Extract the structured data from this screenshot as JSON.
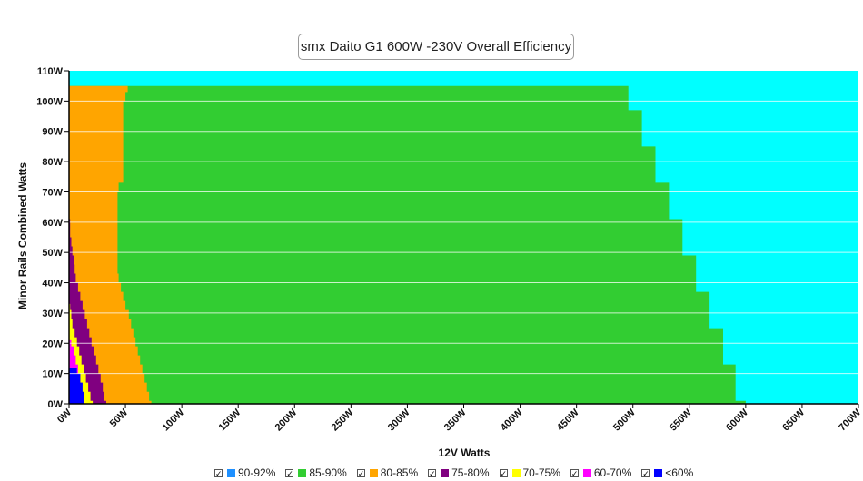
{
  "chart_data": {
    "type": "area",
    "title": "smx Daito G1 600W -230V Overall Efficiency",
    "xlabel": "12V Watts",
    "ylabel": "Minor Rails Combined Watts",
    "xlim": [
      0,
      700
    ],
    "ylim": [
      0,
      110
    ],
    "x_ticks": [
      "0W",
      "50W",
      "100W",
      "150W",
      "200W",
      "250W",
      "300W",
      "350W",
      "400W",
      "450W",
      "500W",
      "550W",
      "600W",
      "650W",
      "700W"
    ],
    "y_ticks": [
      "0W",
      "10W",
      "20W",
      "30W",
      "40W",
      "50W",
      "60W",
      "70W",
      "80W",
      "90W",
      "100W",
      "110W"
    ],
    "background_color": "#00FFFF",
    "legend": [
      {
        "label": "90-92%",
        "color": "#1E90FF"
      },
      {
        "label": "85-90%",
        "color": "#32CD32"
      },
      {
        "label": "80-85%",
        "color": "#FFA500"
      },
      {
        "label": "75-80%",
        "color": "#800080"
      },
      {
        "label": "70-75%",
        "color": "#FFFF00"
      },
      {
        "label": "60-70%",
        "color": "#FF00FF"
      },
      {
        "label": "<60%",
        "color": "#0000FF"
      }
    ],
    "regions": [
      {
        "band": "85-90%",
        "color": "#32CD32",
        "boundary": [
          [
            600,
            0
          ],
          [
            600,
            1
          ],
          [
            591,
            1
          ],
          [
            591,
            13
          ],
          [
            580,
            13
          ],
          [
            580,
            25
          ],
          [
            568,
            25
          ],
          [
            568,
            37
          ],
          [
            556,
            37
          ],
          [
            556,
            49
          ],
          [
            544,
            49
          ],
          [
            544,
            61
          ],
          [
            532,
            61
          ],
          [
            532,
            73
          ],
          [
            520,
            73
          ],
          [
            520,
            85
          ],
          [
            508,
            85
          ],
          [
            508,
            97
          ],
          [
            496,
            97
          ],
          [
            496,
            105
          ],
          [
            0,
            105
          ]
        ]
      },
      {
        "band": "80-85%",
        "color": "#FFA500",
        "boundary": [
          [
            73,
            0
          ],
          [
            73,
            1
          ],
          [
            71,
            1
          ],
          [
            71,
            4
          ],
          [
            69,
            4
          ],
          [
            69,
            7
          ],
          [
            67,
            7
          ],
          [
            67,
            10
          ],
          [
            65,
            10
          ],
          [
            65,
            13
          ],
          [
            63,
            13
          ],
          [
            63,
            16
          ],
          [
            61,
            16
          ],
          [
            61,
            19
          ],
          [
            59,
            19
          ],
          [
            59,
            22
          ],
          [
            57,
            22
          ],
          [
            57,
            25
          ],
          [
            55,
            25
          ],
          [
            55,
            28
          ],
          [
            53,
            28
          ],
          [
            53,
            31
          ],
          [
            50,
            31
          ],
          [
            50,
            34
          ],
          [
            48,
            34
          ],
          [
            48,
            37
          ],
          [
            46,
            37
          ],
          [
            46,
            40
          ],
          [
            44,
            40
          ],
          [
            44,
            43
          ],
          [
            43,
            43
          ],
          [
            43,
            46
          ],
          [
            43,
            49
          ],
          [
            43,
            52
          ],
          [
            43,
            55
          ],
          [
            43,
            58
          ],
          [
            43,
            61
          ],
          [
            43,
            64
          ],
          [
            43,
            67
          ],
          [
            43,
            70
          ],
          [
            44,
            70
          ],
          [
            44,
            73
          ],
          [
            48,
            73
          ],
          [
            48,
            100
          ],
          [
            50,
            100
          ],
          [
            50,
            103
          ],
          [
            52,
            103
          ],
          [
            52,
            105
          ],
          [
            0,
            105
          ]
        ]
      },
      {
        "band": "75-80%",
        "color": "#800080",
        "boundary": [
          [
            33,
            0
          ],
          [
            33,
            1
          ],
          [
            31,
            1
          ],
          [
            31,
            4
          ],
          [
            30,
            4
          ],
          [
            30,
            7
          ],
          [
            28,
            7
          ],
          [
            28,
            10
          ],
          [
            26,
            10
          ],
          [
            26,
            13
          ],
          [
            24,
            13
          ],
          [
            24,
            16
          ],
          [
            22,
            16
          ],
          [
            22,
            19
          ],
          [
            20,
            19
          ],
          [
            20,
            22
          ],
          [
            18,
            22
          ],
          [
            18,
            25
          ],
          [
            16,
            25
          ],
          [
            16,
            28
          ],
          [
            14,
            28
          ],
          [
            14,
            31
          ],
          [
            12,
            31
          ],
          [
            12,
            34
          ],
          [
            10,
            34
          ],
          [
            10,
            37
          ],
          [
            8,
            37
          ],
          [
            8,
            40
          ],
          [
            6,
            40
          ],
          [
            6,
            43
          ],
          [
            5,
            43
          ],
          [
            5,
            46
          ],
          [
            4,
            46
          ],
          [
            4,
            49
          ],
          [
            3,
            49
          ],
          [
            3,
            52
          ],
          [
            2,
            52
          ],
          [
            2,
            55
          ],
          [
            1,
            55
          ],
          [
            1,
            58
          ],
          [
            1,
            61
          ],
          [
            0,
            61
          ]
        ]
      },
      {
        "band": "70-75%",
        "color": "#FFFF00",
        "boundary": [
          [
            21,
            0
          ],
          [
            21,
            1
          ],
          [
            19,
            1
          ],
          [
            19,
            4
          ],
          [
            17,
            4
          ],
          [
            17,
            7
          ],
          [
            15,
            7
          ],
          [
            15,
            10
          ],
          [
            13,
            10
          ],
          [
            13,
            13
          ],
          [
            11,
            13
          ],
          [
            11,
            16
          ],
          [
            9,
            16
          ],
          [
            9,
            19
          ],
          [
            7,
            19
          ],
          [
            7,
            22
          ],
          [
            5,
            22
          ],
          [
            5,
            25
          ],
          [
            3,
            25
          ],
          [
            3,
            28
          ],
          [
            2,
            28
          ],
          [
            2,
            31
          ],
          [
            1,
            31
          ],
          [
            1,
            33
          ],
          [
            0,
            33
          ]
        ]
      },
      {
        "band": "60-70%",
        "color": "#FF00FF",
        "boundary": [
          [
            13,
            0
          ],
          [
            13,
            1
          ],
          [
            12,
            1
          ],
          [
            12,
            4
          ],
          [
            11,
            4
          ],
          [
            11,
            7
          ],
          [
            10,
            7
          ],
          [
            10,
            10
          ],
          [
            8,
            10
          ],
          [
            8,
            13
          ],
          [
            6,
            13
          ],
          [
            6,
            16
          ],
          [
            4,
            16
          ],
          [
            4,
            19
          ],
          [
            2,
            19
          ],
          [
            2,
            21
          ],
          [
            0,
            21
          ]
        ]
      },
      {
        "band": "<60%",
        "color": "#0000FF",
        "boundary": [
          [
            13,
            0
          ],
          [
            13,
            1
          ],
          [
            13,
            4
          ],
          [
            12,
            4
          ],
          [
            12,
            7
          ],
          [
            10,
            7
          ],
          [
            10,
            10
          ],
          [
            7,
            10
          ],
          [
            7,
            12
          ],
          [
            0,
            12
          ]
        ]
      }
    ]
  }
}
